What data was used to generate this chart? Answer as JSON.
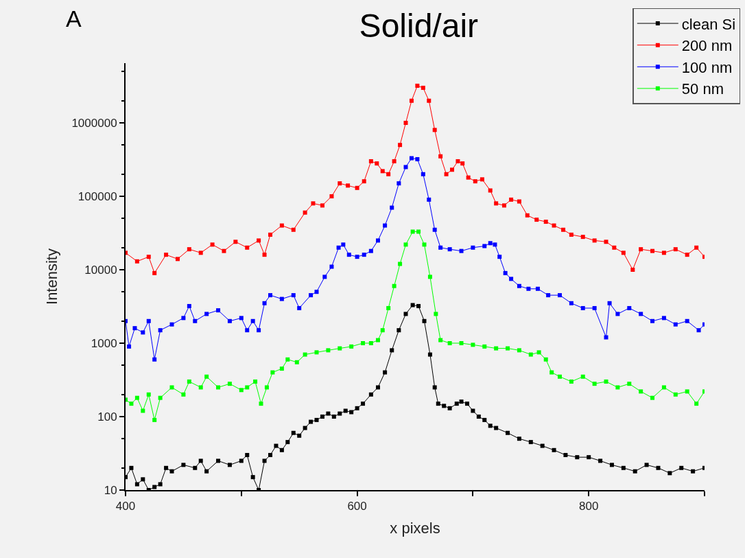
{
  "chart_data": {
    "type": "line",
    "title": "Solid/air",
    "xlabel": "x pixels",
    "ylabel": "Intensity",
    "annotations": [
      "A"
    ],
    "log": "y",
    "grid": false,
    "legend": "top right",
    "marker": "square",
    "line_style": "solid",
    "xlim": [
      400,
      900
    ],
    "xticks": [
      400,
      {
        "value": 500,
        "label": null
      },
      600,
      {
        "value": 700,
        "label": null
      },
      800,
      {
        "value": 900,
        "label": null
      }
    ],
    "ylim": [
      10,
      6500000
    ],
    "yticks": [
      10,
      100,
      1000,
      10000,
      100000,
      1000000
    ],
    "series": [
      {
        "name": "clean Si",
        "color": "#000000",
        "x": [
          400,
          405,
          410,
          415,
          420,
          425,
          430,
          435,
          440,
          450,
          460,
          465,
          470,
          480,
          490,
          500,
          505,
          510,
          515,
          520,
          525,
          530,
          535,
          540,
          545,
          550,
          555,
          560,
          565,
          570,
          575,
          580,
          585,
          590,
          595,
          600,
          605,
          612,
          618,
          624,
          630,
          636,
          642,
          648,
          653,
          658,
          663,
          667,
          670,
          675,
          680,
          686,
          690,
          695,
          700,
          705,
          710,
          715,
          720,
          730,
          740,
          750,
          760,
          770,
          780,
          790,
          800,
          810,
          820,
          830,
          840,
          850,
          860,
          870,
          880,
          890,
          900
        ],
        "values": [
          15,
          20,
          12,
          14,
          10,
          11,
          12,
          20,
          18,
          22,
          20,
          25,
          18,
          25,
          22,
          25,
          30,
          15,
          10,
          25,
          30,
          40,
          35,
          45,
          60,
          55,
          70,
          85,
          90,
          100,
          110,
          100,
          110,
          120,
          115,
          130,
          150,
          200,
          250,
          400,
          800,
          1500,
          2500,
          3300,
          3200,
          2000,
          700,
          250,
          150,
          140,
          130,
          150,
          160,
          150,
          120,
          100,
          90,
          75,
          70,
          60,
          50,
          45,
          40,
          35,
          30,
          28,
          28,
          25,
          22,
          20,
          18,
          22,
          20,
          17,
          20,
          18,
          20
        ]
      },
      {
        "name": "200 nm",
        "color": "#ff0000",
        "x": [
          400,
          410,
          420,
          425,
          435,
          445,
          455,
          465,
          475,
          485,
          495,
          505,
          515,
          520,
          525,
          535,
          545,
          555,
          562,
          570,
          578,
          585,
          592,
          600,
          606,
          612,
          617,
          622,
          627,
          632,
          637,
          642,
          647,
          652,
          657,
          662,
          667,
          672,
          677,
          682,
          687,
          691,
          696,
          702,
          708,
          715,
          720,
          727,
          733,
          740,
          747,
          755,
          763,
          770,
          778,
          785,
          795,
          805,
          815,
          822,
          830,
          838,
          845,
          855,
          865,
          875,
          885,
          893,
          900
        ],
        "values": [
          17000,
          13000,
          15000,
          9000,
          16000,
          14000,
          19000,
          17000,
          22000,
          18000,
          24000,
          20000,
          25000,
          16000,
          30000,
          40000,
          35000,
          60000,
          80000,
          75000,
          100000,
          150000,
          140000,
          130000,
          160000,
          300000,
          280000,
          220000,
          200000,
          300000,
          500000,
          1000000,
          2000000,
          3200000,
          3000000,
          2000000,
          800000,
          350000,
          200000,
          230000,
          300000,
          280000,
          180000,
          160000,
          170000,
          120000,
          80000,
          75000,
          90000,
          85000,
          55000,
          48000,
          45000,
          40000,
          35000,
          30000,
          28000,
          25000,
          24000,
          20000,
          17000,
          10000,
          19000,
          18000,
          17000,
          19000,
          16000,
          20000,
          15000
        ]
      },
      {
        "name": "100 nm",
        "color": "#0000ff",
        "x": [
          400,
          403,
          408,
          415,
          420,
          425,
          430,
          440,
          450,
          455,
          460,
          470,
          480,
          490,
          500,
          505,
          510,
          515,
          520,
          525,
          535,
          545,
          550,
          560,
          565,
          572,
          578,
          584,
          588,
          593,
          600,
          606,
          612,
          618,
          624,
          630,
          636,
          642,
          647,
          652,
          657,
          662,
          667,
          672,
          680,
          690,
          700,
          710,
          715,
          719,
          723,
          728,
          733,
          740,
          748,
          756,
          765,
          775,
          785,
          795,
          805,
          815,
          818,
          825,
          835,
          845,
          855,
          865,
          875,
          885,
          895,
          900
        ],
        "values": [
          2000,
          900,
          1600,
          1400,
          2000,
          600,
          1500,
          1800,
          2200,
          3200,
          2000,
          2500,
          2800,
          2000,
          2200,
          1500,
          2000,
          1500,
          3500,
          4500,
          4000,
          4500,
          3000,
          4500,
          5000,
          8000,
          11000,
          20000,
          22000,
          16000,
          15000,
          16000,
          18000,
          25000,
          40000,
          70000,
          150000,
          250000,
          330000,
          320000,
          200000,
          90000,
          35000,
          20000,
          19000,
          18000,
          20000,
          21000,
          23000,
          22000,
          15000,
          9000,
          7500,
          6000,
          5500,
          5500,
          4500,
          4500,
          3500,
          3000,
          3000,
          1200,
          3500,
          2500,
          3000,
          2500,
          2000,
          2200,
          1800,
          2000,
          1500,
          1800
        ]
      },
      {
        "name": "50 nm",
        "color": "#00ff00",
        "x": [
          400,
          405,
          410,
          415,
          420,
          425,
          430,
          440,
          450,
          455,
          465,
          470,
          480,
          490,
          500,
          505,
          512,
          517,
          522,
          527,
          535,
          540,
          548,
          555,
          565,
          575,
          585,
          595,
          605,
          612,
          618,
          622,
          627,
          632,
          637,
          642,
          648,
          653,
          658,
          663,
          668,
          672,
          680,
          690,
          700,
          710,
          720,
          730,
          740,
          750,
          757,
          763,
          768,
          775,
          785,
          795,
          805,
          815,
          825,
          835,
          845,
          855,
          865,
          875,
          885,
          893,
          900
        ],
        "values": [
          170,
          150,
          180,
          120,
          200,
          90,
          180,
          250,
          200,
          300,
          250,
          350,
          250,
          280,
          230,
          250,
          300,
          150,
          250,
          400,
          450,
          600,
          550,
          700,
          750,
          800,
          850,
          900,
          1000,
          1000,
          1100,
          1500,
          3000,
          6000,
          12000,
          22000,
          33000,
          33000,
          22000,
          8000,
          2500,
          1100,
          1000,
          1000,
          950,
          900,
          850,
          850,
          800,
          700,
          750,
          600,
          400,
          350,
          300,
          350,
          280,
          300,
          250,
          280,
          220,
          180,
          250,
          200,
          220,
          150,
          220
        ]
      }
    ]
  }
}
